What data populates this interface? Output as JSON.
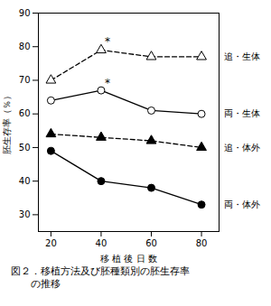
{
  "chart_data": {
    "type": "line",
    "x": [
      20,
      40,
      60,
      80
    ],
    "xlim": [
      15,
      87
    ],
    "xticks": [
      20,
      40,
      60,
      80
    ],
    "ylim": [
      25,
      90
    ],
    "yticks": [
      30,
      40,
      50,
      60,
      70,
      80,
      90
    ],
    "xlabel": "移 植 後 日 数",
    "ylabel": "胚生存率（％）",
    "series": [
      {
        "name": "追・生体",
        "values": [
          70,
          79,
          77,
          77
        ],
        "color": "black",
        "marker": "open_triangle",
        "line_style": "dashed"
      },
      {
        "name": "両・生体",
        "values": [
          64,
          67,
          61,
          60
        ],
        "color": "black",
        "marker": "open_circle",
        "line_style": "solid"
      },
      {
        "name": "追・体外",
        "values": [
          54,
          53,
          52,
          50
        ],
        "color": "black",
        "marker": "filled_triangle",
        "line_style": "dashed"
      },
      {
        "name": "両・体外",
        "values": [
          49,
          40,
          38,
          33
        ],
        "color": "black",
        "marker": "filled_circle",
        "line_style": "solid"
      }
    ],
    "annotations": [
      {
        "text": "*",
        "x": 41.5,
        "y": 80.5
      },
      {
        "text": "*",
        "x": 41.5,
        "y": 68
      }
    ],
    "caption": [
      "図２．移植方法及び胚種類別の胚生存率",
      "　　の推移"
    ],
    "legend": "right",
    "grid": false
  }
}
